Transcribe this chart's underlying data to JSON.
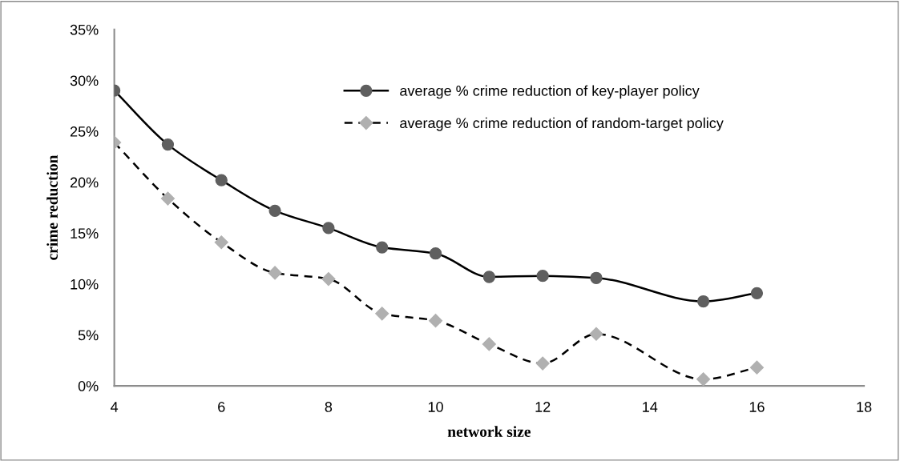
{
  "chart_data": {
    "type": "line",
    "xlabel": "network size",
    "ylabel": "crime reduction",
    "series": [
      {
        "name": "average % crime reduction of key-player policy",
        "color": "#5f5f5f",
        "marker": "circle",
        "line_style": "solid",
        "x": [
          4,
          5,
          6,
          7,
          8,
          9,
          10,
          11,
          12,
          13,
          15,
          16
        ],
        "values": [
          29.0,
          23.7,
          20.2,
          17.2,
          15.5,
          13.6,
          13.0,
          10.7,
          10.8,
          10.6,
          8.3,
          9.1
        ]
      },
      {
        "name": "average % crime reduction of random-target policy",
        "color": "#b0b0b0",
        "marker": "diamond",
        "line_style": "dashed",
        "x": [
          4,
          5,
          6,
          7,
          8,
          9,
          10,
          11,
          12,
          13,
          15,
          16
        ],
        "values": [
          23.9,
          18.4,
          14.1,
          11.1,
          10.5,
          7.1,
          6.4,
          4.1,
          2.2,
          5.1,
          0.65,
          1.8
        ]
      }
    ],
    "xlim": [
      4,
      18
    ],
    "xticks": [
      4,
      6,
      8,
      10,
      12,
      14,
      16,
      18
    ],
    "ylim": [
      0,
      35
    ],
    "yticks": [
      {
        "value": 0,
        "label": "0%"
      },
      {
        "value": 5,
        "label": "5%"
      },
      {
        "value": 10,
        "label": "10%"
      },
      {
        "value": 15,
        "label": "15%"
      },
      {
        "value": 20,
        "label": "20%"
      },
      {
        "value": 25,
        "label": "25%"
      },
      {
        "value": 30,
        "label": "30%"
      },
      {
        "value": 35,
        "label": "35%"
      }
    ],
    "grid": false,
    "legend": "top right"
  }
}
